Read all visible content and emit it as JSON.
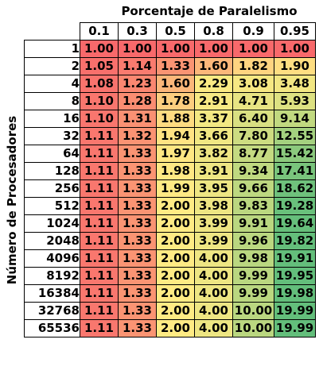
{
  "sheet": {
    "column_title": "Porcentaje de Paralelismo",
    "row_title": "Número de Procesadores",
    "parallel_fractions": [
      "0.1",
      "0.3",
      "0.5",
      "0.8",
      "0.9",
      "0.95"
    ],
    "processors": [
      "1",
      "2",
      "4",
      "8",
      "16",
      "32",
      "64",
      "128",
      "256",
      "512",
      "1024",
      "2048",
      "4096",
      "8192",
      "16384",
      "32768",
      "65536"
    ],
    "speedups": [
      [
        "1.00",
        "1.00",
        "1.00",
        "1.00",
        "1.00",
        "1.00"
      ],
      [
        "1.05",
        "1.14",
        "1.33",
        "1.60",
        "1.82",
        "1.90"
      ],
      [
        "1.08",
        "1.23",
        "1.60",
        "2.29",
        "3.08",
        "3.48"
      ],
      [
        "1.10",
        "1.28",
        "1.78",
        "2.91",
        "4.71",
        "5.93"
      ],
      [
        "1.10",
        "1.31",
        "1.88",
        "3.37",
        "6.40",
        "9.14"
      ],
      [
        "1.11",
        "1.32",
        "1.94",
        "3.66",
        "7.80",
        "12.55"
      ],
      [
        "1.11",
        "1.33",
        "1.97",
        "3.82",
        "8.77",
        "15.42"
      ],
      [
        "1.11",
        "1.33",
        "1.98",
        "3.91",
        "9.34",
        "17.41"
      ],
      [
        "1.11",
        "1.33",
        "1.99",
        "3.95",
        "9.66",
        "18.62"
      ],
      [
        "1.11",
        "1.33",
        "2.00",
        "3.98",
        "9.83",
        "19.28"
      ],
      [
        "1.11",
        "1.33",
        "2.00",
        "3.99",
        "9.91",
        "19.64"
      ],
      [
        "1.11",
        "1.33",
        "2.00",
        "3.99",
        "9.96",
        "19.82"
      ],
      [
        "1.11",
        "1.33",
        "2.00",
        "4.00",
        "9.98",
        "19.91"
      ],
      [
        "1.11",
        "1.33",
        "2.00",
        "4.00",
        "9.99",
        "19.95"
      ],
      [
        "1.11",
        "1.33",
        "2.00",
        "4.00",
        "9.99",
        "19.98"
      ],
      [
        "1.11",
        "1.33",
        "2.00",
        "4.00",
        "10.00",
        "19.99"
      ],
      [
        "1.11",
        "1.33",
        "2.00",
        "4.00",
        "10.00",
        "19.99"
      ]
    ],
    "color_scale": {
      "low": "#f8696b",
      "mid": "#ffeb84",
      "high": "#63be7b"
    }
  }
}
